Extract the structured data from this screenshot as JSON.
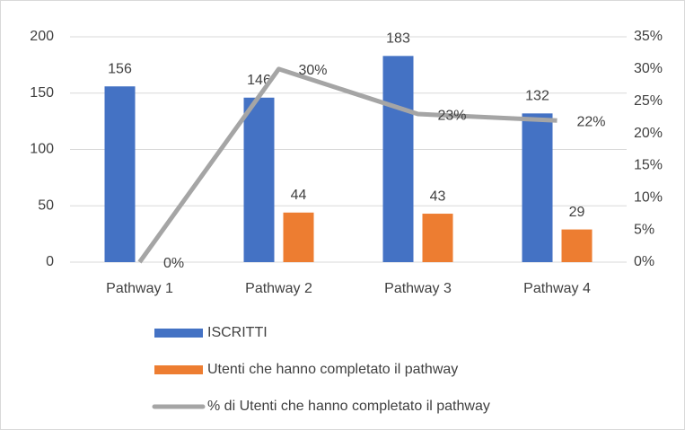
{
  "chart_data": {
    "type": "bar-line",
    "categories": [
      "Pathway 1",
      "Pathway 2",
      "Pathway 3",
      "Pathway 4"
    ],
    "series": [
      {
        "name": "ISCRITTI",
        "type": "bar",
        "color": "#4472c4",
        "values": [
          156,
          146,
          183,
          132
        ]
      },
      {
        "name": "Utenti che hanno completato il pathway",
        "type": "bar",
        "color": "#ed7d31",
        "values": [
          null,
          44,
          43,
          29
        ]
      },
      {
        "name": "% di Utenti che hanno completato il pathway",
        "type": "line",
        "axis": "y2",
        "color": "#a5a5a5",
        "values": [
          0,
          30,
          23,
          22
        ],
        "value_labels": [
          "0%",
          "30%",
          "23%",
          "22%"
        ]
      }
    ],
    "ylim": [
      0,
      200
    ],
    "yticks": [
      0,
      50,
      100,
      150,
      200
    ],
    "y2lim": [
      0,
      35
    ],
    "y2ticks": [
      {
        "value": 0,
        "label": "0%"
      },
      {
        "value": 5,
        "label": "5%"
      },
      {
        "value": 10,
        "label": "10%"
      },
      {
        "value": 15,
        "label": "15%"
      },
      {
        "value": 20,
        "label": "20%"
      },
      {
        "value": 25,
        "label": "25%"
      },
      {
        "value": 30,
        "label": "30%"
      },
      {
        "value": 35,
        "label": "35%"
      }
    ],
    "grid": true,
    "legend": "bottom"
  }
}
